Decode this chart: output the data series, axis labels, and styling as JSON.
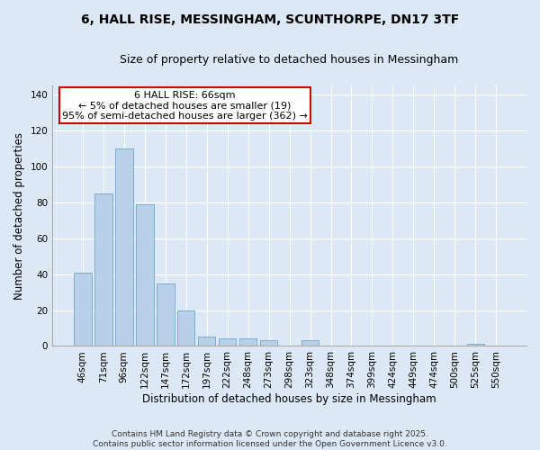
{
  "title1": "6, HALL RISE, MESSINGHAM, SCUNTHORPE, DN17 3TF",
  "title2": "Size of property relative to detached houses in Messingham",
  "xlabel": "Distribution of detached houses by size in Messingham",
  "ylabel": "Number of detached properties",
  "categories": [
    "46sqm",
    "71sqm",
    "96sqm",
    "122sqm",
    "147sqm",
    "172sqm",
    "197sqm",
    "222sqm",
    "248sqm",
    "273sqm",
    "298sqm",
    "323sqm",
    "348sqm",
    "374sqm",
    "399sqm",
    "424sqm",
    "449sqm",
    "474sqm",
    "500sqm",
    "525sqm",
    "550sqm"
  ],
  "values": [
    41,
    85,
    110,
    79,
    35,
    20,
    5,
    4,
    4,
    3,
    0,
    3,
    0,
    0,
    0,
    0,
    0,
    0,
    0,
    1,
    0
  ],
  "bar_color": "#b8d0e8",
  "bar_edge_color": "#7aadce",
  "annotation_text": "6 HALL RISE: 66sqm\n← 5% of detached houses are smaller (19)\n95% of semi-detached houses are larger (362) →",
  "annotation_box_color": "#ffffff",
  "annotation_box_edge": "#cc0000",
  "ylim": [
    0,
    145
  ],
  "yticks": [
    0,
    20,
    40,
    60,
    80,
    100,
    120,
    140
  ],
  "background_color": "#dce8f5",
  "footer_text": "Contains HM Land Registry data © Crown copyright and database right 2025.\nContains public sector information licensed under the Open Government Licence v3.0.",
  "title1_fontsize": 10,
  "title2_fontsize": 9,
  "xlabel_fontsize": 8.5,
  "ylabel_fontsize": 8.5,
  "tick_fontsize": 7.5,
  "annotation_fontsize": 8,
  "footer_fontsize": 6.5
}
